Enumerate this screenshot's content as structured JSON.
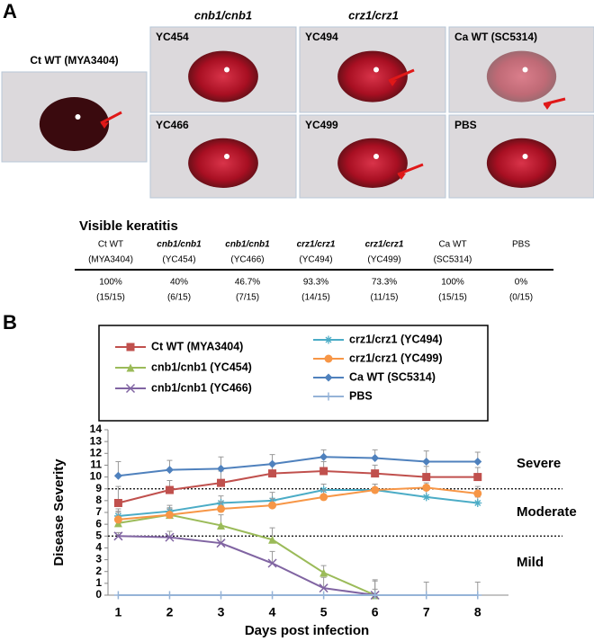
{
  "panel_a": {
    "label": "A",
    "group_labels": [
      "cnb1/cnb1",
      "crz1/crz1"
    ],
    "photos": [
      "Ct WT (MYA3404)",
      "YC454",
      "YC494",
      "Ca WT (SC5314)",
      "YC466",
      "YC499",
      "PBS"
    ],
    "table": {
      "title": "Visible keratitis",
      "header": [
        [
          "Ct WT",
          "(MYA3404)"
        ],
        [
          "cnb1/cnb1",
          "(YC454)"
        ],
        [
          "cnb1/cnb1",
          "(YC466)"
        ],
        [
          "crz1/crz1",
          "(YC494)"
        ],
        [
          "crz1/crz1",
          "(YC499)"
        ],
        [
          "Ca WT",
          "(SC5314)"
        ],
        [
          "PBS"
        ]
      ],
      "rows": [
        [
          "100%",
          "(15/15)"
        ],
        [
          "40%",
          "(6/15)"
        ],
        [
          "46.7%",
          "(7/15)"
        ],
        [
          "93.3%",
          "(14/15)"
        ],
        [
          "73.3%",
          "(11/15)"
        ],
        [
          "100%",
          "(15/15)"
        ],
        [
          "0%",
          "(0/15)"
        ]
      ]
    }
  },
  "chart_data": {
    "type": "line",
    "panel_label": "B",
    "x_label": "Days post infection",
    "y_label": "Disease Severity",
    "x": [
      1,
      2,
      3,
      4,
      5,
      6,
      7,
      8
    ],
    "xlim": [
      0.8,
      8.6
    ],
    "xticks": [
      1,
      2,
      3,
      4,
      5,
      6,
      7,
      8
    ],
    "ylim": [
      0,
      14
    ],
    "yticks": [
      0,
      1,
      2,
      3,
      4,
      5,
      6,
      7,
      8,
      9,
      10,
      11,
      12,
      13,
      14
    ],
    "thresholds": [
      9,
      5
    ],
    "region_labels": [
      "Severe",
      "Moderate",
      "Mild"
    ],
    "series": [
      {
        "name": "Ct WT (MYA3404)",
        "color": "#c0504d",
        "marker": "square",
        "values": [
          7.8,
          8.9,
          9.5,
          10.3,
          10.5,
          10.3,
          10.0,
          10.0
        ],
        "errors": [
          1.4,
          0.8,
          1.0,
          0.9,
          0.8,
          0.7,
          0.9,
          0.8
        ]
      },
      {
        "name": "cnb1/cnb1 (YC454)",
        "color": "#9bbb59",
        "marker": "triangle",
        "values": [
          6.1,
          6.8,
          5.9,
          4.7,
          1.9,
          0,
          null,
          null
        ],
        "errors": [
          1.0,
          0.6,
          0.9,
          1.0,
          0.6,
          1.3,
          null,
          null
        ]
      },
      {
        "name": "cnb1/cnb1 (YC466)",
        "color": "#8064a2",
        "marker": "x",
        "values": [
          5.0,
          4.9,
          4.4,
          2.7,
          0.6,
          0,
          null,
          null
        ],
        "errors": [
          0.3,
          0.5,
          0.6,
          1.0,
          0.9,
          0.5,
          null,
          null
        ]
      },
      {
        "name": "crz1/crz1 (YC494)",
        "color": "#4bacc6",
        "marker": "star",
        "values": [
          6.7,
          7.1,
          7.8,
          8.0,
          8.9,
          8.9,
          8.3,
          7.8
        ],
        "errors": [
          0.6,
          0.5,
          0.6,
          0.7,
          0.5,
          0.5,
          0.6,
          0.5
        ]
      },
      {
        "name": "crz1/crz1 (YC499)",
        "color": "#f79646",
        "marker": "circle",
        "values": [
          6.4,
          6.8,
          7.3,
          7.6,
          8.3,
          8.9,
          9.1,
          8.6
        ],
        "errors": [
          0.6,
          0.5,
          0.6,
          0.6,
          0.6,
          0.5,
          0.4,
          0.6
        ]
      },
      {
        "name": "Ca WT (SC5314)",
        "color": "#4f81bd",
        "marker": "diamond",
        "values": [
          10.1,
          10.6,
          10.7,
          11.1,
          11.7,
          11.6,
          11.3,
          11.3
        ],
        "errors": [
          1.2,
          0.8,
          1.0,
          0.8,
          0.6,
          0.7,
          0.9,
          0.8
        ]
      },
      {
        "name": "PBS",
        "color": "#95b3d7",
        "marker": "plus",
        "values": [
          0,
          0,
          0,
          0,
          0,
          0,
          0,
          0
        ],
        "errors": [
          0,
          0,
          0,
          0,
          0,
          1.2,
          1.1,
          1.1
        ]
      }
    ]
  }
}
